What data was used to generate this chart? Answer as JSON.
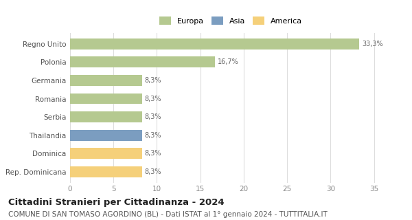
{
  "categories": [
    "Regno Unito",
    "Polonia",
    "Germania",
    "Romania",
    "Serbia",
    "Thailandia",
    "Dominica",
    "Rep. Dominicana"
  ],
  "values": [
    33.3,
    16.7,
    8.3,
    8.3,
    8.3,
    8.3,
    8.3,
    8.3
  ],
  "labels": [
    "33,3%",
    "16,7%",
    "8,3%",
    "8,3%",
    "8,3%",
    "8,3%",
    "8,3%",
    "8,3%"
  ],
  "colors": [
    "#b5c990",
    "#b5c990",
    "#b5c990",
    "#b5c990",
    "#b5c990",
    "#7b9dc0",
    "#f5d07a",
    "#f5d07a"
  ],
  "legend": [
    {
      "label": "Europa",
      "color": "#b5c990"
    },
    {
      "label": "Asia",
      "color": "#7b9dc0"
    },
    {
      "label": "America",
      "color": "#f5d07a"
    }
  ],
  "xlim": [
    0,
    37
  ],
  "xticks": [
    0,
    5,
    10,
    15,
    20,
    25,
    30,
    35
  ],
  "title": "Cittadini Stranieri per Cittadinanza - 2024",
  "subtitle": "COMUNE DI SAN TOMASO AGORDINO (BL) - Dati ISTAT al 1° gennaio 2024 - TUTTITALIA.IT",
  "title_fontsize": 9.5,
  "subtitle_fontsize": 7.5,
  "background_color": "#ffffff",
  "grid_color": "#dddddd",
  "bar_height": 0.6
}
